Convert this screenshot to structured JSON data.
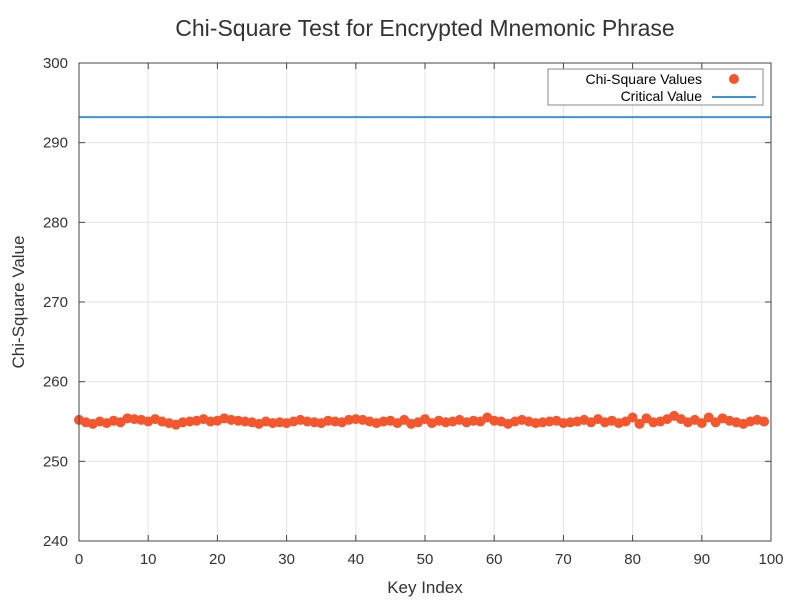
{
  "chart_data": {
    "type": "scatter",
    "title": "Chi-Square Test for Encrypted Mnemonic Phrase",
    "xlabel": "Key Index",
    "ylabel": "Chi-Square Value",
    "xlim": [
      0,
      100
    ],
    "ylim": [
      240,
      300
    ],
    "x_ticks": [
      "0",
      "10",
      "20",
      "30",
      "40",
      "50",
      "60",
      "70",
      "80",
      "90",
      "100"
    ],
    "y_ticks": [
      "240",
      "250",
      "260",
      "270",
      "280",
      "290",
      "300"
    ],
    "grid": true,
    "legend_position": "top-right",
    "series": [
      {
        "name": "Chi-Square Values",
        "kind": "scatter",
        "color": "#f4572e",
        "x": [
          0,
          1,
          2,
          3,
          4,
          5,
          6,
          7,
          8,
          9,
          10,
          11,
          12,
          13,
          14,
          15,
          16,
          17,
          18,
          19,
          20,
          21,
          22,
          23,
          24,
          25,
          26,
          27,
          28,
          29,
          30,
          31,
          32,
          33,
          34,
          35,
          36,
          37,
          38,
          39,
          40,
          41,
          42,
          43,
          44,
          45,
          46,
          47,
          48,
          49,
          50,
          51,
          52,
          53,
          54,
          55,
          56,
          57,
          58,
          59,
          60,
          61,
          62,
          63,
          64,
          65,
          66,
          67,
          68,
          69,
          70,
          71,
          72,
          73,
          74,
          75,
          76,
          77,
          78,
          79,
          80,
          81,
          82,
          83,
          84,
          85,
          86,
          87,
          88,
          89,
          90,
          91,
          92,
          93,
          94,
          95,
          96,
          97,
          98,
          99
        ],
        "y": [
          255.2,
          254.9,
          254.7,
          255.0,
          254.8,
          255.1,
          254.9,
          255.4,
          255.3,
          255.2,
          255.0,
          255.3,
          255.0,
          254.8,
          254.6,
          254.9,
          255.0,
          255.1,
          255.3,
          255.0,
          255.1,
          255.4,
          255.2,
          255.1,
          255.0,
          254.9,
          254.7,
          255.0,
          254.8,
          254.9,
          254.8,
          255.0,
          255.2,
          255.0,
          254.9,
          254.8,
          255.1,
          255.0,
          254.9,
          255.2,
          255.3,
          255.2,
          255.0,
          254.8,
          255.0,
          255.1,
          254.8,
          255.2,
          254.7,
          254.9,
          255.3,
          254.8,
          255.1,
          254.9,
          255.0,
          255.2,
          254.9,
          255.1,
          255.0,
          255.5,
          255.1,
          255.0,
          254.7,
          255.0,
          255.2,
          255.0,
          254.8,
          254.9,
          255.0,
          255.1,
          254.8,
          254.9,
          255.0,
          255.2,
          254.9,
          255.3,
          254.9,
          255.1,
          254.8,
          255.0,
          255.5,
          254.7,
          255.4,
          254.9,
          255.0,
          255.3,
          255.7,
          255.3,
          254.9,
          255.2,
          254.8,
          255.5,
          254.9,
          255.4,
          255.1,
          254.9,
          254.7,
          255.0,
          255.2,
          255.0
        ]
      },
      {
        "name": "Critical Value",
        "kind": "hline",
        "color": "#3a94d6",
        "y": 293.2
      }
    ]
  }
}
